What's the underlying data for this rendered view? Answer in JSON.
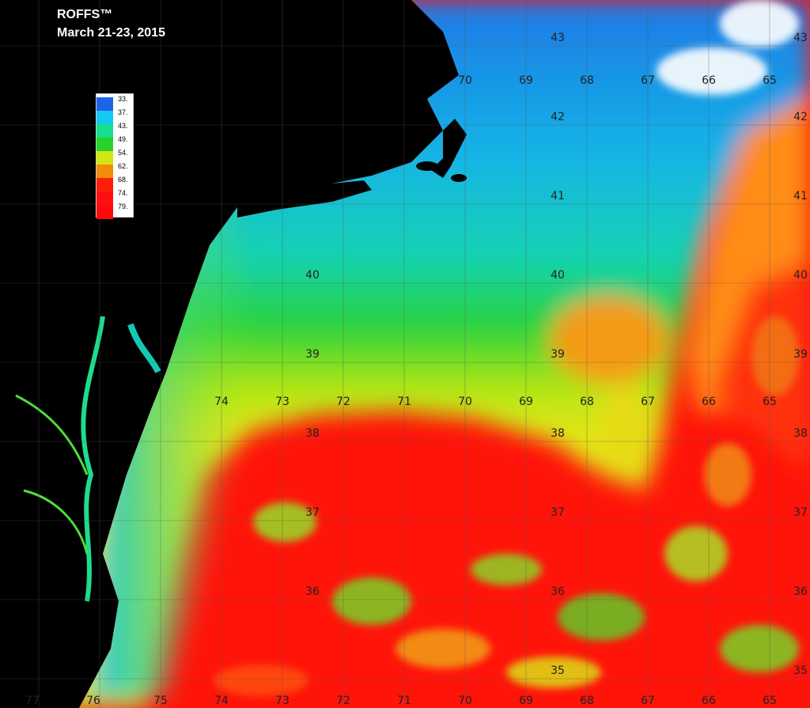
{
  "header": {
    "brand": "ROFFS™",
    "date": "March 21-23, 2015"
  },
  "legend": {
    "unit_values": [
      "33.",
      "37.",
      "43.",
      "49.",
      "54.",
      "62.",
      "68.",
      "74.",
      "79."
    ],
    "colors": [
      "#1e64e6",
      "#14c8f0",
      "#14e08c",
      "#28d228",
      "#d2e614",
      "#f08c0a",
      "#ff1e0a",
      "#ff1010",
      "#ff0a0a"
    ]
  },
  "grid": {
    "top_lon_labels": [
      "70",
      "69",
      "68",
      "67",
      "66",
      "65"
    ],
    "mid_lon_labels": [
      "74",
      "73",
      "72",
      "71",
      "70",
      "69",
      "68",
      "67",
      "66",
      "65"
    ],
    "bottom_lon_labels": [
      "77",
      "76",
      "75",
      "74",
      "73",
      "72",
      "71",
      "70",
      "69",
      "68",
      "67",
      "66",
      "65"
    ],
    "lat_labels_west": [
      "40",
      "39",
      "38",
      "37",
      "36"
    ],
    "lat_labels_center": [
      "43",
      "42",
      "41",
      "40",
      "39",
      "38",
      "37",
      "36",
      "35"
    ],
    "lat_labels_east": [
      "43",
      "42",
      "41",
      "40",
      "39",
      "38",
      "37",
      "36",
      "35"
    ]
  },
  "colors": {
    "land": "#000000",
    "cold": "#1e64e6",
    "warm": "#ff0a0a"
  }
}
